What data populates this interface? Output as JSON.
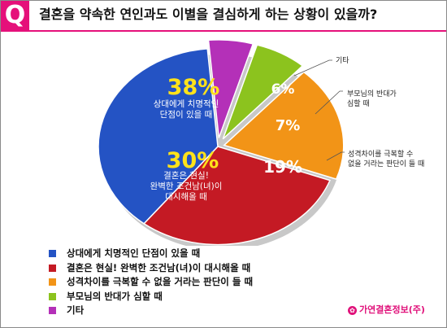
{
  "badge": "Q",
  "title": "결혼을 약속한 연인과도 이별을 결심하게 하는 상황이 있을까?",
  "brand": {
    "icon": "logo-icon",
    "label": "가연결혼정보(주)"
  },
  "chart_data": {
    "type": "pie",
    "title": "",
    "slices": [
      {
        "name": "상대에게 치명적인 단점이 있을 때",
        "value": 38,
        "value_label": "38%",
        "inner_label": [
          "상대에게 치명적인",
          "단점이 있을 때"
        ],
        "color": "#2453c4"
      },
      {
        "name": "결혼은 현실! 완벽한 조건남(녀)이 대시해올 때",
        "value": 30,
        "value_label": "30%",
        "inner_label": [
          "결혼은 현실!",
          "완벽한 조건남(녀)이",
          "대시해올 때"
        ],
        "color": "#c41a24"
      },
      {
        "name": "성격차이를 극복할 수 없을 거라는 판단이 들 때",
        "value": 19,
        "value_label": "19%",
        "inner_label": [],
        "callout": [
          "성격차이를 극복할 수",
          "없을 거라는 판단이 들 때"
        ],
        "color": "#f29417"
      },
      {
        "name": "부모님의 반대가 심할 때",
        "value": 7,
        "value_label": "7%",
        "inner_label": [],
        "callout": [
          "부모님의 반대가",
          "심할 때"
        ],
        "color": "#8cc31e"
      },
      {
        "name": "기타",
        "value": 6,
        "value_label": "6%",
        "inner_label": [],
        "callout": [
          "기타"
        ],
        "color": "#b430b8"
      }
    ],
    "legend": {
      "position": "bottom-left",
      "items": [
        "상대에게 치명적인 단점이 있을 때",
        "결혼은 현실! 완벽한 조건남(녀)이 대시해올 때",
        "성격차이를 극복할 수 없을 거라는 판단이 들 때",
        "부모님의 반대가 심할 때",
        "기타"
      ]
    }
  }
}
